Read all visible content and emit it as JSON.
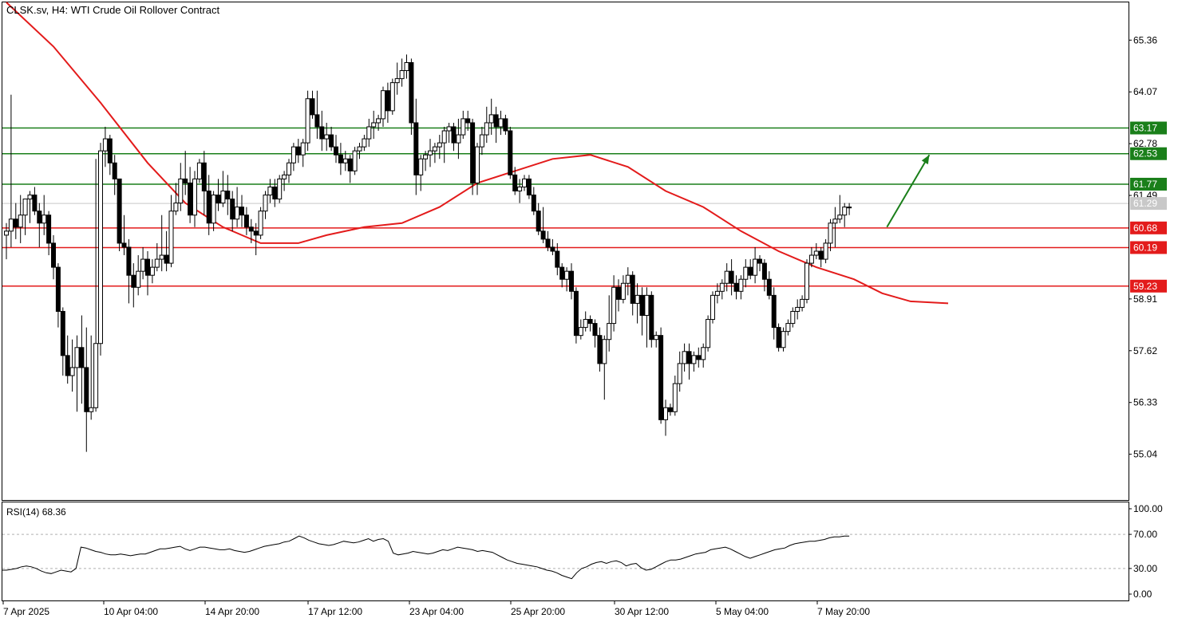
{
  "header": {
    "symbol": "CLSK.sv, H4:",
    "description": "WTI Crude Oil Rollover Contract"
  },
  "colors": {
    "support": "#e31b1b",
    "resistance": "#1a7f1a",
    "ma": "#e31b1b",
    "current_price": "#c8c8c8",
    "candle_up": "#ffffff",
    "candle_down": "#000000",
    "arrow": "#1a7f1a"
  },
  "chart_data": {
    "type": "candlestick",
    "title": "CLSK.sv, H4:  WTI Crude Oil Rollover Contract",
    "timeframe": "H4",
    "y_axis": {
      "range": [
        53.9,
        66.3
      ],
      "ticks": [
        "65.36",
        "64.07",
        "62.78",
        "61.49",
        "58.91",
        "57.62",
        "56.33",
        "55.04"
      ]
    },
    "x_axis": {
      "ticks": [
        "7 Apr 2025",
        "10 Apr 04:00",
        "14 Apr 20:00",
        "17 Apr 12:00",
        "23 Apr 04:00",
        "25 Apr 20:00",
        "30 Apr 12:00",
        "5 May 04:00",
        "7 May 20:00"
      ]
    },
    "current_price": {
      "label": "61.29",
      "value": 61.29
    },
    "horizontal_levels": [
      {
        "label": "63.17",
        "value": 63.17,
        "kind": "resistance"
      },
      {
        "label": "62.53",
        "value": 62.53,
        "kind": "resistance"
      },
      {
        "label": "61.77",
        "value": 61.77,
        "kind": "resistance"
      },
      {
        "label": "60.68",
        "value": 60.68,
        "kind": "support"
      },
      {
        "label": "60.19",
        "value": 60.19,
        "kind": "support"
      },
      {
        "label": "59.23",
        "value": 59.23,
        "kind": "support"
      }
    ],
    "candles_ohlc": [
      [
        60.5,
        60.8,
        59.9,
        60.6
      ],
      [
        60.6,
        64.0,
        60.2,
        60.9
      ],
      [
        60.9,
        61.3,
        60.4,
        60.7
      ],
      [
        60.7,
        61.5,
        60.3,
        61.0
      ],
      [
        61.0,
        61.4,
        60.5,
        61.4
      ],
      [
        61.4,
        61.6,
        60.8,
        61.5
      ],
      [
        61.5,
        61.7,
        61.0,
        61.1
      ],
      [
        61.1,
        61.3,
        60.2,
        60.8
      ],
      [
        60.8,
        61.5,
        60.5,
        61.0
      ],
      [
        61.0,
        61.1,
        60.0,
        60.3
      ],
      [
        60.3,
        60.5,
        59.4,
        59.7
      ],
      [
        59.7,
        59.8,
        58.2,
        58.6
      ],
      [
        58.6,
        58.7,
        57.0,
        57.5
      ],
      [
        57.5,
        58.0,
        56.8,
        57.0
      ],
      [
        57.0,
        57.9,
        56.6,
        57.2
      ],
      [
        57.2,
        58.0,
        56.1,
        57.7
      ],
      [
        57.7,
        58.5,
        56.3,
        57.2
      ],
      [
        57.2,
        58.2,
        55.1,
        56.1
      ],
      [
        56.1,
        58.0,
        55.9,
        56.2
      ],
      [
        56.2,
        62.4,
        56.1,
        57.8
      ],
      [
        57.8,
        62.8,
        57.5,
        62.6
      ],
      [
        62.6,
        63.2,
        62.2,
        62.9
      ],
      [
        62.9,
        63.0,
        62.0,
        62.3
      ],
      [
        62.3,
        62.5,
        61.5,
        61.9
      ],
      [
        61.9,
        61.9,
        60.1,
        60.3
      ],
      [
        60.3,
        61.0,
        60.0,
        60.2
      ],
      [
        60.2,
        60.4,
        58.8,
        59.5
      ],
      [
        59.5,
        59.8,
        58.7,
        59.2
      ],
      [
        59.2,
        60.0,
        59.0,
        59.6
      ],
      [
        59.6,
        60.2,
        59.4,
        59.9
      ],
      [
        59.9,
        60.1,
        59.0,
        59.5
      ],
      [
        59.5,
        59.9,
        59.3,
        59.7
      ],
      [
        59.7,
        60.3,
        59.6,
        59.9
      ],
      [
        59.9,
        61.0,
        59.6,
        60.0
      ],
      [
        60.0,
        60.6,
        59.6,
        59.8
      ],
      [
        59.8,
        61.5,
        59.7,
        61.1
      ],
      [
        61.1,
        61.8,
        61.0,
        61.3
      ],
      [
        61.3,
        62.3,
        61.1,
        61.9
      ],
      [
        61.9,
        62.6,
        61.5,
        61.8
      ],
      [
        61.8,
        62.2,
        60.8,
        61.0
      ],
      [
        61.0,
        62.1,
        60.7,
        61.9
      ],
      [
        61.9,
        62.4,
        61.8,
        62.3
      ],
      [
        62.3,
        62.6,
        61.0,
        61.6
      ],
      [
        61.6,
        62.0,
        60.5,
        60.8
      ],
      [
        60.8,
        61.6,
        60.6,
        61.5
      ],
      [
        61.5,
        61.9,
        61.1,
        61.3
      ],
      [
        61.3,
        62.1,
        61.2,
        61.6
      ],
      [
        61.6,
        62.0,
        61.0,
        61.4
      ],
      [
        61.4,
        61.6,
        60.6,
        60.9
      ],
      [
        60.9,
        61.7,
        60.7,
        61.2
      ],
      [
        61.2,
        61.5,
        60.7,
        61.0
      ],
      [
        61.0,
        61.2,
        60.5,
        60.7
      ],
      [
        60.7,
        60.9,
        60.3,
        60.6
      ],
      [
        60.6,
        60.8,
        60.0,
        60.5
      ],
      [
        60.5,
        61.2,
        60.4,
        61.1
      ],
      [
        61.1,
        61.6,
        60.9,
        61.5
      ],
      [
        61.5,
        61.9,
        61.3,
        61.7
      ],
      [
        61.7,
        61.9,
        61.2,
        61.4
      ],
      [
        61.4,
        62.0,
        61.3,
        61.9
      ],
      [
        61.9,
        62.1,
        61.6,
        62.0
      ],
      [
        62.0,
        62.4,
        61.8,
        62.3
      ],
      [
        62.3,
        62.8,
        62.1,
        62.7
      ],
      [
        62.7,
        62.9,
        62.3,
        62.5
      ],
      [
        62.5,
        62.9,
        62.2,
        62.8
      ],
      [
        62.8,
        64.1,
        62.6,
        63.9
      ],
      [
        63.9,
        64.1,
        63.4,
        63.5
      ],
      [
        63.5,
        64.1,
        62.9,
        63.2
      ],
      [
        63.2,
        63.6,
        62.6,
        62.9
      ],
      [
        62.9,
        63.3,
        62.6,
        63.0
      ],
      [
        63.0,
        63.2,
        62.6,
        62.7
      ],
      [
        62.7,
        63.0,
        62.3,
        62.5
      ],
      [
        62.5,
        62.8,
        62.0,
        62.3
      ],
      [
        62.3,
        62.6,
        62.1,
        62.4
      ],
      [
        62.4,
        62.5,
        61.8,
        62.1
      ],
      [
        62.1,
        62.7,
        62.0,
        62.6
      ],
      [
        62.6,
        62.8,
        62.4,
        62.7
      ],
      [
        62.7,
        63.0,
        62.6,
        62.9
      ],
      [
        62.9,
        63.4,
        62.7,
        63.2
      ],
      [
        63.2,
        63.6,
        62.9,
        63.3
      ],
      [
        63.3,
        63.5,
        63.1,
        63.4
      ],
      [
        63.4,
        64.2,
        63.2,
        64.1
      ],
      [
        64.1,
        64.3,
        63.3,
        63.6
      ],
      [
        63.6,
        64.4,
        63.5,
        64.3
      ],
      [
        64.3,
        64.8,
        64.0,
        64.4
      ],
      [
        64.4,
        64.9,
        64.2,
        64.6
      ],
      [
        64.6,
        65.0,
        64.4,
        64.8
      ],
      [
        64.8,
        64.9,
        63.0,
        63.3
      ],
      [
        63.3,
        63.9,
        61.5,
        62.0
      ],
      [
        62.0,
        62.5,
        61.6,
        62.4
      ],
      [
        62.4,
        62.6,
        62.1,
        62.5
      ],
      [
        62.5,
        62.9,
        62.2,
        62.6
      ],
      [
        62.6,
        62.8,
        62.3,
        62.7
      ],
      [
        62.7,
        63.0,
        62.4,
        62.8
      ],
      [
        62.8,
        63.2,
        62.3,
        63.1
      ],
      [
        63.1,
        63.3,
        62.8,
        63.2
      ],
      [
        63.2,
        63.3,
        62.6,
        62.8
      ],
      [
        62.8,
        63.4,
        62.4,
        63.0
      ],
      [
        63.0,
        63.6,
        62.9,
        63.4
      ],
      [
        63.4,
        63.6,
        63.1,
        63.3
      ],
      [
        63.3,
        63.4,
        61.5,
        61.8
      ],
      [
        61.8,
        62.8,
        61.5,
        62.7
      ],
      [
        62.7,
        63.2,
        62.5,
        63.0
      ],
      [
        63.0,
        63.7,
        62.8,
        63.3
      ],
      [
        63.3,
        63.9,
        63.0,
        63.5
      ],
      [
        63.5,
        63.7,
        62.8,
        63.2
      ],
      [
        63.2,
        63.6,
        63.0,
        63.4
      ],
      [
        63.4,
        63.5,
        63.0,
        63.1
      ],
      [
        63.1,
        63.2,
        61.9,
        62.0
      ],
      [
        62.0,
        62.2,
        61.5,
        61.6
      ],
      [
        61.6,
        61.9,
        61.3,
        61.7
      ],
      [
        61.7,
        62.0,
        61.6,
        61.9
      ],
      [
        61.9,
        62.0,
        61.4,
        61.5
      ],
      [
        61.5,
        61.7,
        61.0,
        61.1
      ],
      [
        61.1,
        61.3,
        60.5,
        60.6
      ],
      [
        60.6,
        61.2,
        60.3,
        60.4
      ],
      [
        60.4,
        60.6,
        60.1,
        60.2
      ],
      [
        60.2,
        60.4,
        60.0,
        60.1
      ],
      [
        60.1,
        60.3,
        59.5,
        59.7
      ],
      [
        59.7,
        59.8,
        59.2,
        59.4
      ],
      [
        59.4,
        59.7,
        59.1,
        59.6
      ],
      [
        59.6,
        59.8,
        58.9,
        59.1
      ],
      [
        59.1,
        59.2,
        57.8,
        58.0
      ],
      [
        58.0,
        58.4,
        57.9,
        58.2
      ],
      [
        58.2,
        58.6,
        58.1,
        58.4
      ],
      [
        58.4,
        58.5,
        58.1,
        58.3
      ],
      [
        58.3,
        58.4,
        57.7,
        58.0
      ],
      [
        58.0,
        58.2,
        57.1,
        57.3
      ],
      [
        57.3,
        58.0,
        56.4,
        57.9
      ],
      [
        57.9,
        59.0,
        57.6,
        58.3
      ],
      [
        58.3,
        59.5,
        58.1,
        59.2
      ],
      [
        59.2,
        59.4,
        58.6,
        58.9
      ],
      [
        58.9,
        59.5,
        58.8,
        59.3
      ],
      [
        59.3,
        59.7,
        59.0,
        59.5
      ],
      [
        59.5,
        59.6,
        58.5,
        58.8
      ],
      [
        58.8,
        59.3,
        58.3,
        59.0
      ],
      [
        59.0,
        59.2,
        58.0,
        58.5
      ],
      [
        58.5,
        59.2,
        57.7,
        59.0
      ],
      [
        59.0,
        59.1,
        57.7,
        57.9
      ],
      [
        57.9,
        58.1,
        57.7,
        58.0
      ],
      [
        58.0,
        58.2,
        55.8,
        55.9
      ],
      [
        55.9,
        56.4,
        55.5,
        56.2
      ],
      [
        56.2,
        56.3,
        56.0,
        56.1
      ],
      [
        56.1,
        57.0,
        56.0,
        56.8
      ],
      [
        56.8,
        57.6,
        56.6,
        57.3
      ],
      [
        57.3,
        57.8,
        57.1,
        57.6
      ],
      [
        57.6,
        57.8,
        56.9,
        57.3
      ],
      [
        57.3,
        57.6,
        57.1,
        57.5
      ],
      [
        57.5,
        57.7,
        57.2,
        57.4
      ],
      [
        57.4,
        57.8,
        57.2,
        57.7
      ],
      [
        57.7,
        58.5,
        57.6,
        58.4
      ],
      [
        58.4,
        59.1,
        58.3,
        59.0
      ],
      [
        59.0,
        59.3,
        58.8,
        59.1
      ],
      [
        59.1,
        59.4,
        58.9,
        59.3
      ],
      [
        59.3,
        59.8,
        59.1,
        59.6
      ],
      [
        59.6,
        59.9,
        59.0,
        59.3
      ],
      [
        59.3,
        59.5,
        58.9,
        59.1
      ],
      [
        59.1,
        59.5,
        58.9,
        59.4
      ],
      [
        59.4,
        59.9,
        59.2,
        59.7
      ],
      [
        59.7,
        59.9,
        59.4,
        59.5
      ],
      [
        59.5,
        60.2,
        59.3,
        59.9
      ],
      [
        59.9,
        60.0,
        59.6,
        59.8
      ],
      [
        59.8,
        59.9,
        59.1,
        59.4
      ],
      [
        59.4,
        59.6,
        58.9,
        59.0
      ],
      [
        59.0,
        59.2,
        57.9,
        58.2
      ],
      [
        58.2,
        58.3,
        57.6,
        57.7
      ],
      [
        57.7,
        58.2,
        57.6,
        58.1
      ],
      [
        58.1,
        58.4,
        58.0,
        58.3
      ],
      [
        58.3,
        58.7,
        58.2,
        58.6
      ],
      [
        58.6,
        58.9,
        58.4,
        58.7
      ],
      [
        58.7,
        59.0,
        58.6,
        58.9
      ],
      [
        58.9,
        59.9,
        58.8,
        59.8
      ],
      [
        59.8,
        60.2,
        59.7,
        60.0
      ],
      [
        60.0,
        60.3,
        59.9,
        60.1
      ],
      [
        60.1,
        60.2,
        59.7,
        59.9
      ],
      [
        59.9,
        60.4,
        59.8,
        60.3
      ],
      [
        60.3,
        60.9,
        60.1,
        60.8
      ],
      [
        60.8,
        61.2,
        60.2,
        60.9
      ],
      [
        60.9,
        61.5,
        60.8,
        61.0
      ],
      [
        61.0,
        61.3,
        60.7,
        61.2
      ],
      [
        61.2,
        61.3,
        61.0,
        61.2
      ]
    ],
    "moving_average": [
      [
        0,
        66.3
      ],
      [
        10,
        65.2
      ],
      [
        20,
        63.8
      ],
      [
        30,
        62.3
      ],
      [
        38,
        61.3
      ],
      [
        46,
        60.7
      ],
      [
        54,
        60.3
      ],
      [
        62,
        60.3
      ],
      [
        68,
        60.5
      ],
      [
        76,
        60.7
      ],
      [
        84,
        60.8
      ],
      [
        92,
        61.2
      ],
      [
        100,
        61.8
      ],
      [
        108,
        62.1
      ],
      [
        116,
        62.4
      ],
      [
        124,
        62.5
      ],
      [
        132,
        62.2
      ],
      [
        140,
        61.6
      ],
      [
        148,
        61.2
      ],
      [
        156,
        60.6
      ],
      [
        164,
        60.1
      ],
      [
        172,
        59.7
      ],
      [
        180,
        59.4
      ],
      [
        186,
        59.05
      ],
      [
        192,
        58.85
      ],
      [
        200,
        58.8
      ]
    ],
    "target_arrow": {
      "from": [
        187,
        60.7
      ],
      "to": [
        196,
        62.5
      ]
    },
    "rsi": {
      "label": "RSI(14)",
      "value_label": "68.36",
      "value": 68.36,
      "range": [
        0,
        100
      ],
      "ticks": [
        "100.00",
        "70.00",
        "30.00",
        "0.00"
      ],
      "levels": [
        70,
        30
      ],
      "values": [
        28,
        28,
        29,
        30,
        32,
        33,
        32,
        30,
        27,
        25,
        24,
        26,
        28,
        27,
        26,
        30,
        55,
        54,
        52,
        50,
        49,
        47,
        46,
        46,
        47,
        46,
        45,
        46,
        47,
        47,
        49,
        51,
        53,
        53,
        54,
        55,
        56,
        53,
        51,
        53,
        55,
        55,
        54,
        53,
        52,
        52,
        53,
        51,
        50,
        49,
        50,
        52,
        54,
        56,
        57,
        58,
        59,
        61,
        62,
        65,
        68,
        66,
        63,
        61,
        59,
        58,
        57,
        58,
        60,
        62,
        61,
        60,
        61,
        63,
        65,
        62,
        64,
        65,
        62,
        48,
        46,
        47,
        48,
        50,
        49,
        48,
        47,
        48,
        50,
        52,
        51,
        53,
        55,
        54,
        53,
        52,
        50,
        51,
        50,
        49,
        46,
        43,
        40,
        38,
        36,
        35,
        34,
        33,
        32,
        30,
        28,
        27,
        25,
        22,
        20,
        18,
        25,
        30,
        32,
        35,
        37,
        38,
        36,
        38,
        39,
        37,
        33,
        35,
        36,
        31,
        28,
        29,
        32,
        35,
        38,
        40,
        40,
        41,
        43,
        45,
        47,
        48,
        49,
        52,
        53,
        54,
        55,
        53,
        50,
        47,
        44,
        42,
        44,
        46,
        48,
        50,
        52,
        53,
        54,
        57,
        59,
        60,
        61,
        62,
        62,
        63,
        64,
        66,
        67,
        67,
        68,
        68
      ]
    }
  }
}
